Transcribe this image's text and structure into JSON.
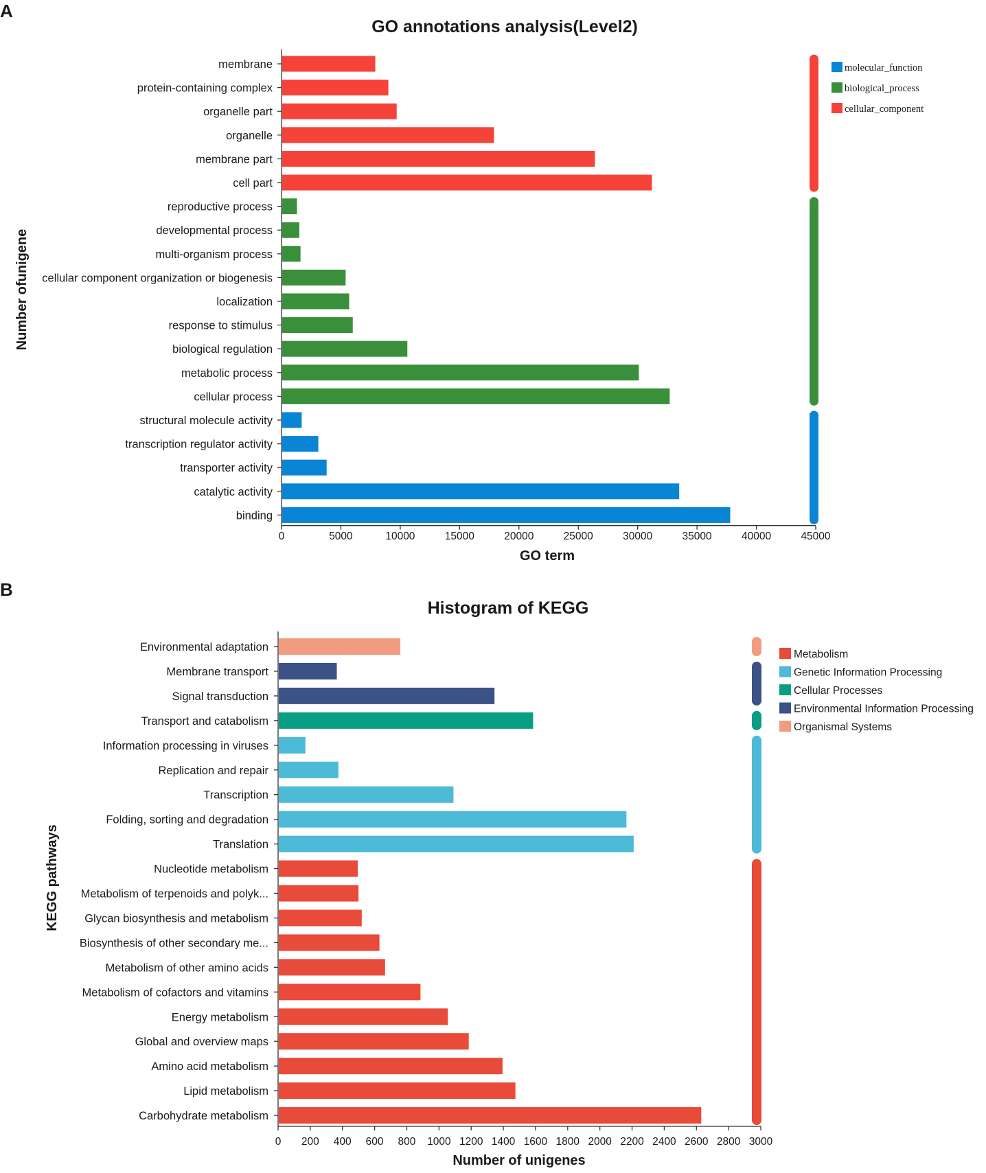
{
  "chart_data": [
    {
      "panel": "A",
      "type": "bar",
      "orientation": "horizontal",
      "title": "GO annotations analysis(Level2)",
      "xlabel": "GO term",
      "ylabel": "Number ofunigene",
      "xlim": [
        0,
        45000
      ],
      "xticks": [
        0,
        5000,
        10000,
        15000,
        20000,
        25000,
        30000,
        35000,
        40000,
        45000
      ],
      "legend_position": "top-right",
      "legend": [
        {
          "name": "molecular_function",
          "color": "#0a85d6"
        },
        {
          "name": "biological_process",
          "color": "#3a8f3b"
        },
        {
          "name": "cellular_component",
          "color": "#f5433a"
        }
      ],
      "groups": [
        {
          "name": "cellular_component",
          "color": "#f5433a"
        },
        {
          "name": "biological_process",
          "color": "#3a8f3b"
        },
        {
          "name": "molecular_function",
          "color": "#0a85d6"
        }
      ],
      "bars": [
        {
          "label": "membrane",
          "value": 7900,
          "group": "cellular_component"
        },
        {
          "label": "protein-containing complex",
          "value": 9000,
          "group": "cellular_component"
        },
        {
          "label": "organelle part",
          "value": 9700,
          "group": "cellular_component"
        },
        {
          "label": "organelle",
          "value": 17900,
          "group": "cellular_component"
        },
        {
          "label": "membrane part",
          "value": 26400,
          "group": "cellular_component"
        },
        {
          "label": "cell part",
          "value": 31200,
          "group": "cellular_component"
        },
        {
          "label": "reproductive process",
          "value": 1300,
          "group": "biological_process"
        },
        {
          "label": "developmental process",
          "value": 1500,
          "group": "biological_process"
        },
        {
          "label": "multi-organism process",
          "value": 1600,
          "group": "biological_process"
        },
        {
          "label": "cellular component organization or biogenesis",
          "value": 5400,
          "group": "biological_process"
        },
        {
          "label": "localization",
          "value": 5700,
          "group": "biological_process"
        },
        {
          "label": "response to stimulus",
          "value": 6000,
          "group": "biological_process"
        },
        {
          "label": "biological regulation",
          "value": 10600,
          "group": "biological_process"
        },
        {
          "label": "metabolic process",
          "value": 30100,
          "group": "biological_process"
        },
        {
          "label": "cellular process",
          "value": 32700,
          "group": "biological_process"
        },
        {
          "label": "structural molecule activity",
          "value": 1700,
          "group": "molecular_function"
        },
        {
          "label": "transcription regulator activity",
          "value": 3100,
          "group": "molecular_function"
        },
        {
          "label": "transporter activity",
          "value": 3800,
          "group": "molecular_function"
        },
        {
          "label": "catalytic activity",
          "value": 33500,
          "group": "molecular_function"
        },
        {
          "label": "binding",
          "value": 37800,
          "group": "molecular_function"
        }
      ]
    },
    {
      "panel": "B",
      "type": "bar",
      "orientation": "horizontal",
      "title": "Histogram of KEGG",
      "xlabel": "Number of unigenes",
      "ylabel": "KEGG pathways",
      "xlim": [
        0,
        3000
      ],
      "xticks": [
        0,
        200,
        400,
        600,
        800,
        1000,
        1200,
        1400,
        1600,
        1800,
        2000,
        2200,
        2400,
        2600,
        2800,
        3000
      ],
      "legend_position": "top-right",
      "legend": [
        {
          "name": "Metabolism",
          "color": "#e84b3a"
        },
        {
          "name": "Genetic Information Processing",
          "color": "#4dbad8"
        },
        {
          "name": "Cellular Processes",
          "color": "#079e84"
        },
        {
          "name": "Environmental Information Processing",
          "color": "#3b5287"
        },
        {
          "name": "Organismal Systems",
          "color": "#f19c7f"
        }
      ],
      "groups": [
        {
          "name": "Organismal Systems",
          "color": "#f19c7f"
        },
        {
          "name": "Environmental Information Processing",
          "color": "#3b5287"
        },
        {
          "name": "Cellular Processes",
          "color": "#079e84"
        },
        {
          "name": "Genetic Information Processing",
          "color": "#4dbad8"
        },
        {
          "name": "Metabolism",
          "color": "#e84b3a"
        }
      ],
      "bars": [
        {
          "label": "Environmental adaptation",
          "value": 760,
          "group": "Organismal Systems"
        },
        {
          "label": "Membrane transport",
          "value": 365,
          "group": "Environmental Information Processing"
        },
        {
          "label": "Signal transduction",
          "value": 1345,
          "group": "Environmental Information Processing"
        },
        {
          "label": "Transport and catabolism",
          "value": 1585,
          "group": "Cellular Processes"
        },
        {
          "label": "Information processing in viruses",
          "value": 170,
          "group": "Genetic Information Processing"
        },
        {
          "label": "Replication and repair",
          "value": 375,
          "group": "Genetic Information Processing"
        },
        {
          "label": "Transcription",
          "value": 1090,
          "group": "Genetic Information Processing"
        },
        {
          "label": "Folding, sorting and degradation",
          "value": 2165,
          "group": "Genetic Information Processing"
        },
        {
          "label": "Translation",
          "value": 2210,
          "group": "Genetic Information Processing"
        },
        {
          "label": "Nucleotide metabolism",
          "value": 495,
          "group": "Metabolism"
        },
        {
          "label": "Metabolism of terpenoids and polyk...",
          "value": 500,
          "group": "Metabolism"
        },
        {
          "label": "Glycan biosynthesis and metabolism",
          "value": 520,
          "group": "Metabolism"
        },
        {
          "label": "Biosynthesis of other secondary me...",
          "value": 630,
          "group": "Metabolism"
        },
        {
          "label": "Metabolism of other amino acids",
          "value": 665,
          "group": "Metabolism"
        },
        {
          "label": "Metabolism of cofactors and vitamins",
          "value": 885,
          "group": "Metabolism"
        },
        {
          "label": "Energy metabolism",
          "value": 1055,
          "group": "Metabolism"
        },
        {
          "label": "Global and overview maps",
          "value": 1185,
          "group": "Metabolism"
        },
        {
          "label": "Amino acid metabolism",
          "value": 1395,
          "group": "Metabolism"
        },
        {
          "label": "Lipid metabolism",
          "value": 1475,
          "group": "Metabolism"
        },
        {
          "label": "Carbohydrate metabolism",
          "value": 2630,
          "group": "Metabolism"
        }
      ]
    }
  ]
}
